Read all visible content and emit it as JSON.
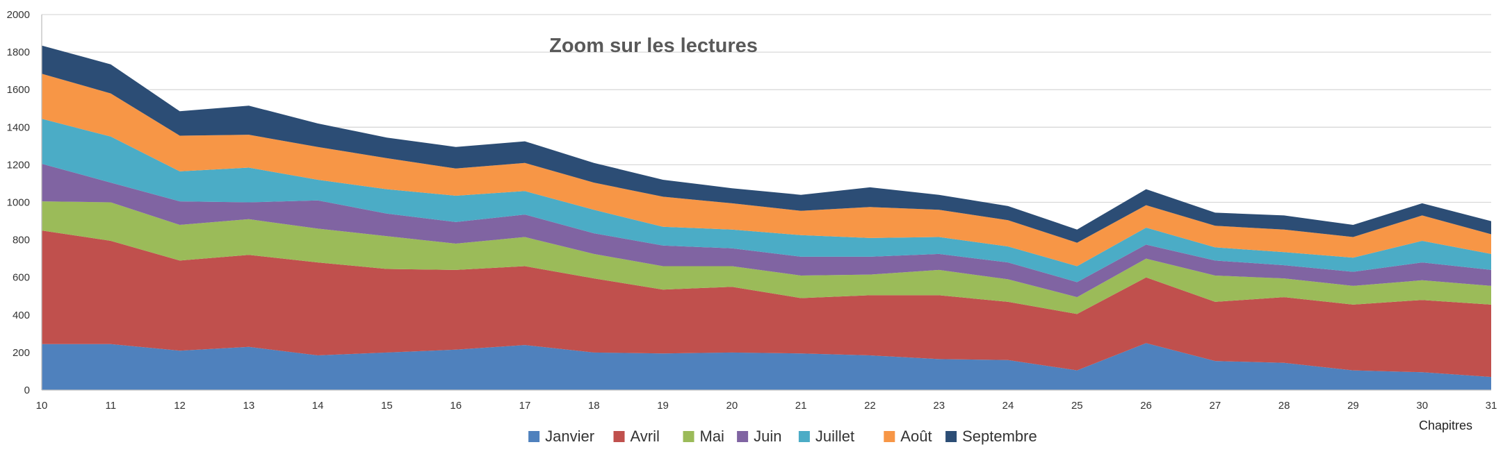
{
  "chart_data": {
    "type": "area",
    "stacked": true,
    "title": "Zoom sur les lectures",
    "xlabel": "Chapitres",
    "ylabel": "",
    "x": [
      10,
      11,
      12,
      13,
      14,
      15,
      16,
      17,
      18,
      19,
      20,
      21,
      22,
      23,
      24,
      25,
      26,
      27,
      28,
      29,
      30,
      31
    ],
    "ylim": [
      0,
      2000
    ],
    "yticks": [
      0,
      200,
      400,
      600,
      800,
      1000,
      1200,
      1400,
      1600,
      1800,
      2000
    ],
    "grid": true,
    "legend_position": "bottom",
    "series": [
      {
        "name": "Janvier",
        "color": "#4f81bd",
        "values": [
          245,
          245,
          210,
          230,
          185,
          200,
          215,
          240,
          200,
          195,
          200,
          195,
          185,
          165,
          160,
          105,
          250,
          155,
          145,
          105,
          95,
          70
        ]
      },
      {
        "name": "Avril",
        "color": "#c0504d",
        "values": [
          605,
          550,
          480,
          490,
          495,
          445,
          425,
          420,
          395,
          340,
          350,
          295,
          320,
          340,
          310,
          300,
          350,
          315,
          350,
          350,
          385,
          385
        ]
      },
      {
        "name": "Mai",
        "color": "#9bbb59",
        "values": [
          155,
          205,
          190,
          190,
          180,
          175,
          140,
          155,
          130,
          125,
          110,
          120,
          110,
          135,
          120,
          90,
          100,
          140,
          100,
          100,
          105,
          100
        ]
      },
      {
        "name": "Juin",
        "color": "#8064a2",
        "values": [
          200,
          105,
          125,
          90,
          150,
          120,
          115,
          120,
          110,
          110,
          95,
          100,
          95,
          85,
          90,
          80,
          75,
          80,
          70,
          75,
          95,
          85
        ]
      },
      {
        "name": "Juillet",
        "color": "#4bacc6",
        "values": [
          240,
          245,
          160,
          185,
          110,
          130,
          140,
          125,
          125,
          100,
          100,
          115,
          100,
          90,
          85,
          85,
          90,
          70,
          70,
          75,
          115,
          85
        ]
      },
      {
        "name": "Août",
        "color": "#f79646",
        "values": [
          240,
          230,
          190,
          175,
          175,
          165,
          145,
          150,
          145,
          160,
          140,
          130,
          165,
          145,
          140,
          125,
          120,
          115,
          120,
          110,
          135,
          105
        ]
      },
      {
        "name": "Septembre",
        "color": "#2c4d75",
        "values": [
          150,
          155,
          130,
          155,
          125,
          110,
          115,
          115,
          105,
          90,
          80,
          85,
          105,
          80,
          75,
          70,
          85,
          70,
          75,
          65,
          65,
          70
        ]
      }
    ]
  }
}
